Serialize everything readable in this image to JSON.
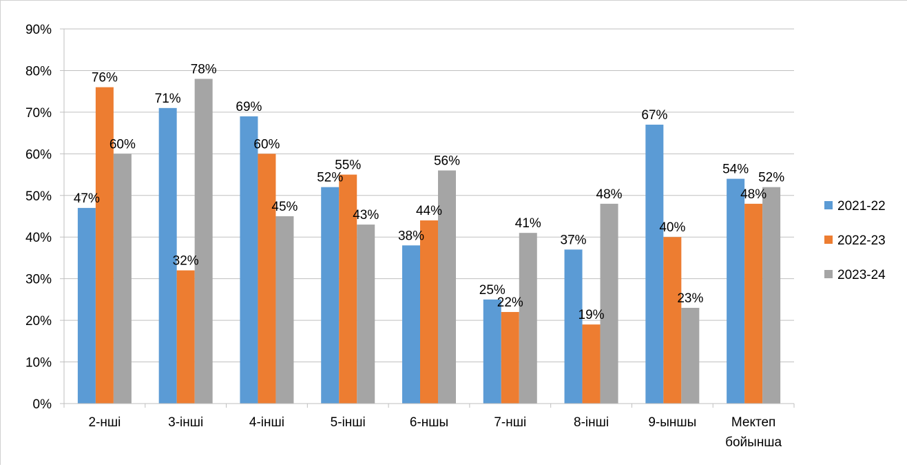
{
  "chart_data": {
    "type": "bar",
    "title": "",
    "xlabel": "",
    "ylabel": "",
    "ylim": [
      0,
      90
    ],
    "y_ticks": [
      "0%",
      "10%",
      "20%",
      "30%",
      "40%",
      "50%",
      "60%",
      "70%",
      "80%",
      "90%"
    ],
    "y_tick_values": [
      0,
      10,
      20,
      30,
      40,
      50,
      60,
      70,
      80,
      90
    ],
    "grid": true,
    "legend_position": "right",
    "categories": [
      [
        "2-нші"
      ],
      [
        "3-інші"
      ],
      [
        "4-інші"
      ],
      [
        "5-інші"
      ],
      [
        "6-ншы"
      ],
      [
        "7-нші"
      ],
      [
        "8-інші"
      ],
      [
        "9-ыншы"
      ],
      [
        "Мектеп",
        "бойынша"
      ]
    ],
    "series": [
      {
        "name": "2021-22",
        "color": "#5B9BD5",
        "values": [
          47,
          71,
          69,
          52,
          38,
          25,
          37,
          67,
          54
        ],
        "labels": [
          "47%",
          "71%",
          "69%",
          "52%",
          "38%",
          "25%",
          "37%",
          "67%",
          "54%"
        ]
      },
      {
        "name": "2022-23",
        "color": "#ED7D31",
        "values": [
          76,
          32,
          60,
          55,
          44,
          22,
          19,
          40,
          48
        ],
        "labels": [
          "76%",
          "32%",
          "60%",
          "55%",
          "44%",
          "22%",
          "19%",
          "40%",
          "48%"
        ]
      },
      {
        "name": "2023-24",
        "color": "#A5A5A5",
        "values": [
          60,
          78,
          45,
          43,
          56,
          41,
          48,
          23,
          52
        ],
        "labels": [
          "60%",
          "78%",
          "45%",
          "43%",
          "56%",
          "41%",
          "48%",
          "23%",
          "52%"
        ]
      }
    ]
  }
}
